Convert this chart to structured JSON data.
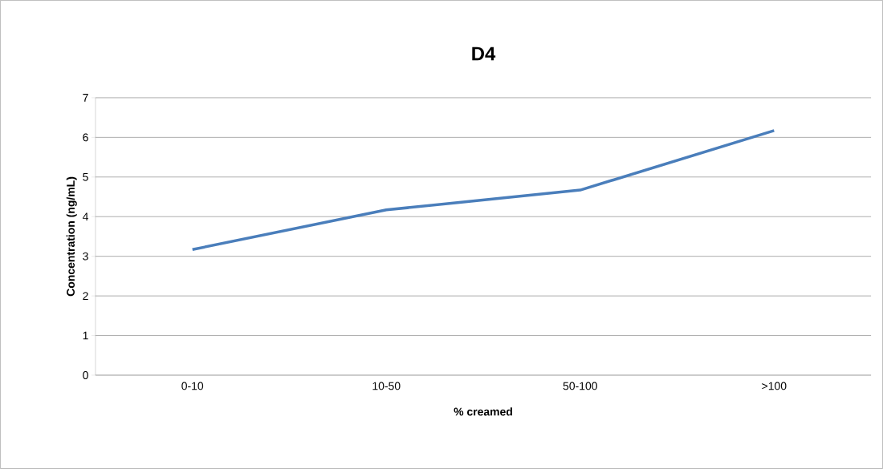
{
  "chart_data": {
    "type": "line",
    "title": "D4",
    "xlabel": "% creamed",
    "ylabel": "Concentration (ng/mL)",
    "categories": [
      "0-10",
      "10-50",
      "50-100",
      ">100"
    ],
    "series": [
      {
        "color": "#4a7ebb",
        "values": [
          3.17,
          4.17,
          4.67,
          6.17
        ]
      }
    ],
    "ylim": [
      0,
      7
    ],
    "yticks": [
      0,
      1,
      2,
      3,
      4,
      5,
      6,
      7
    ],
    "grid": "y",
    "marker": "none",
    "line_style": "solid"
  }
}
